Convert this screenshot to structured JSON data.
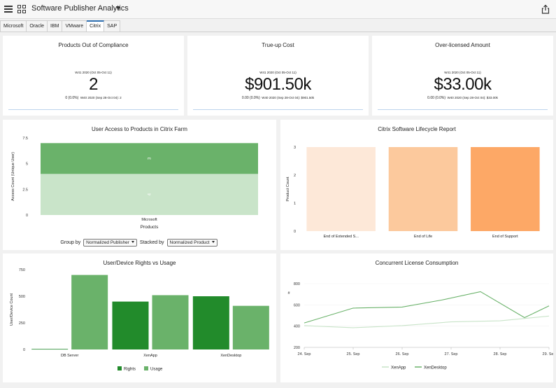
{
  "app": {
    "title": "Software Publisher Analytics"
  },
  "tabs": [
    {
      "label": "Microsoft"
    },
    {
      "label": "Oracle"
    },
    {
      "label": "IBM"
    },
    {
      "label": "VMware"
    },
    {
      "label": "Citrix"
    },
    {
      "label": "SAP"
    }
  ],
  "active_tab": "Citrix",
  "icons": {
    "menu": "hamburger-icon",
    "apps": "grid-icon",
    "dropdown": "caret-down-icon",
    "share": "share-icon"
  },
  "kpis": [
    {
      "title": "Products Out of Compliance",
      "period": "W41 2020 (Oct 05-Oct 11)",
      "value": "2",
      "change": "0 (0.0%)",
      "previous": "W40 2020 (Sep 28-Oct 04): 2"
    },
    {
      "title": "True-up Cost",
      "period": "W41 2020 (Oct 05-Oct 11)",
      "value": "$901.50k",
      "change": "0.00 (0.0%)",
      "previous": "W40 2020 (Sep 28-Oct 04): $901.50k"
    },
    {
      "title": "Over-licensed Amount",
      "period": "W41 2020 (Oct 05-Oct 11)",
      "value": "$33.00k",
      "change": "0.00 (0.0%)",
      "previous": "W40 2020 (Sep 28-Oct 04): $33.00k"
    }
  ],
  "access_controls": {
    "group_label": "Group by",
    "group_value": "Normalized Publisher",
    "stack_label": "Stacked by",
    "stack_value": "Normalized Product"
  },
  "colors": {
    "green_dark": "#228b2b",
    "green_mid": "#6ab26a",
    "green_light": "#c9e4c9",
    "orange_1": "#fde8d8",
    "orange_2": "#fcc99d",
    "orange_3": "#fda866",
    "accent_blue": "#2f6fb0"
  },
  "chart_data": [
    {
      "type": "bar",
      "title": "User Access to Products in Citrix Farm",
      "xlabel": "Products",
      "ylabel": "Access Count (Unique User)",
      "categories": [
        "Microsoft"
      ],
      "stacked": true,
      "yticks": [
        "0",
        "2.5",
        "5",
        "7.5"
      ],
      "ylim": [
        0,
        7.5
      ],
      "series": [
        {
          "values": [
            4
          ],
          "label": "4",
          "color": "#c9e4c9"
        },
        {
          "values": [
            3
          ],
          "label": "3",
          "color": "#6ab26a"
        }
      ]
    },
    {
      "type": "bar",
      "title": "Citrix Software Lifecycle Report",
      "xlabel": "",
      "ylabel": "Product Count",
      "categories": [
        "End of Extended S...",
        "End of Life",
        "End of Support"
      ],
      "values": [
        3,
        3,
        3
      ],
      "colors": [
        "#fde8d8",
        "#fcc99d",
        "#fda866"
      ],
      "yticks": [
        "0",
        "1",
        "2",
        "3"
      ],
      "ylim": [
        0,
        3
      ]
    },
    {
      "type": "bar",
      "title": "User/Device Rights vs Usage",
      "xlabel": "",
      "ylabel": "User/Device Count",
      "categories": [
        "DB Server",
        "XenApp",
        "XenDesktop"
      ],
      "yticks": [
        "0",
        "250",
        "500",
        "750"
      ],
      "ylim": [
        0,
        750
      ],
      "legend": "bottom",
      "series": [
        {
          "name": "Rights",
          "values": [
            5,
            450,
            500
          ],
          "color": "#228b2b"
        },
        {
          "name": "Usage",
          "values": [
            700,
            510,
            410
          ],
          "color": "#6ab26a"
        }
      ]
    },
    {
      "type": "line",
      "title": "Concurrent License Consumption",
      "xlabel": "",
      "ylabel": "#",
      "x": [
        "24. Sep",
        "25. Sep",
        "26. Sep",
        "27. Sep",
        "28. Sep",
        "29. Sep"
      ],
      "xpos": [
        0,
        1,
        2,
        3,
        4,
        5
      ],
      "yticks": [
        "200",
        "400",
        "600",
        "800"
      ],
      "ylim": [
        200,
        800
      ],
      "legend": "bottom",
      "series": [
        {
          "name": "XenApp",
          "x": [
            0,
            1,
            2,
            3,
            4,
            5
          ],
          "values": [
            405,
            385,
            405,
            440,
            450,
            495
          ],
          "color": "#c9e4c9"
        },
        {
          "name": "XenDesktop",
          "x": [
            0,
            1,
            2,
            2.8,
            3.6,
            4.5,
            5
          ],
          "values": [
            430,
            570,
            580,
            645,
            725,
            480,
            590
          ],
          "color": "#6ab26a"
        }
      ]
    }
  ]
}
